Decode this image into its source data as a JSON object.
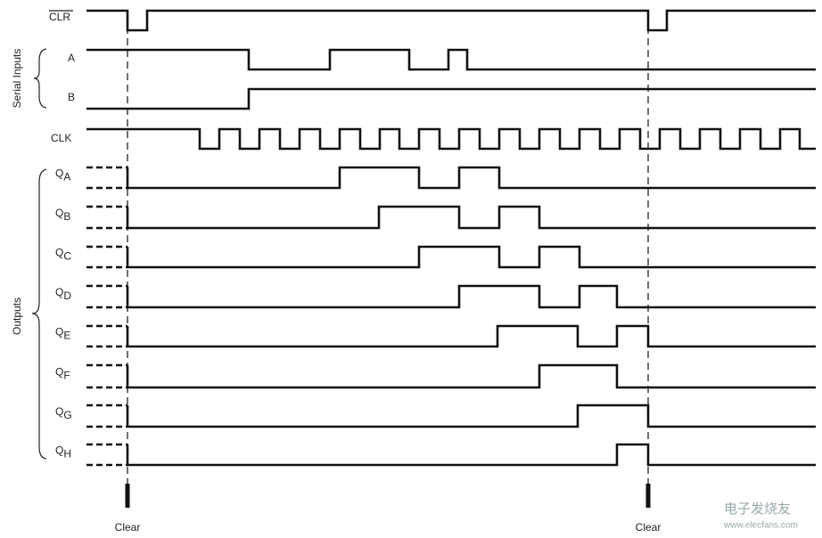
{
  "signals": {
    "clr": "CLR",
    "a": "A",
    "b": "B",
    "clk": "CLK"
  },
  "groups": {
    "serial": "Serial Inputs",
    "outputs": "Outputs"
  },
  "outputs": [
    {
      "q": "Q",
      "sub": "A"
    },
    {
      "q": "Q",
      "sub": "B"
    },
    {
      "q": "Q",
      "sub": "C"
    },
    {
      "q": "Q",
      "sub": "D"
    },
    {
      "q": "Q",
      "sub": "E"
    },
    {
      "q": "Q",
      "sub": "F"
    },
    {
      "q": "Q",
      "sub": "G"
    },
    {
      "q": "Q",
      "sub": "H"
    }
  ],
  "markers": [
    "Clear",
    "Clear"
  ],
  "watermark": {
    "brand": "电子发烧友",
    "url": "www.elecfans.com"
  }
}
